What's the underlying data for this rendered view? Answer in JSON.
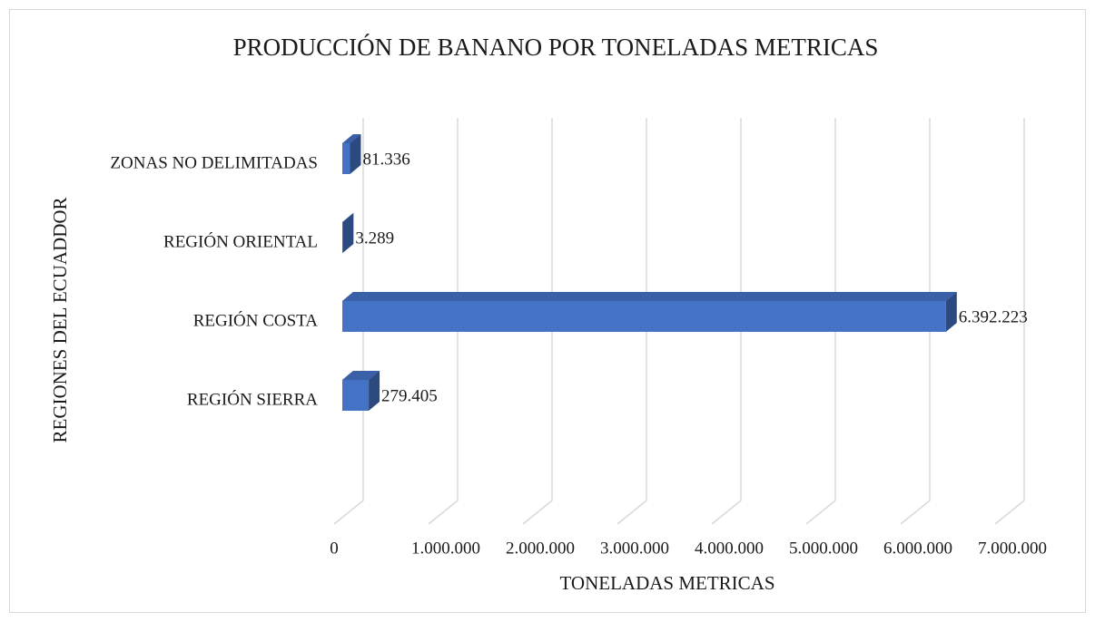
{
  "chart_data": {
    "type": "bar3d-horizontal",
    "title": "PRODUCCIÓN  DE BANANO POR TONELADAS METRICAS",
    "x_label": "TONELADAS METRICAS",
    "y_label": "REGIONES DEL ECUADDOR",
    "categories": [
      "REGIÓN SIERRA",
      "REGIÓN COSTA",
      "REGIÓN ORIENTAL",
      "ZONAS NO DELIMITADAS"
    ],
    "values": [
      279405,
      6392223,
      3289,
      81336
    ],
    "value_labels": [
      "279.405",
      "6.392.223",
      "3.289",
      "81.336"
    ],
    "color": "#4472c4",
    "xlim": [
      0,
      7000000
    ],
    "xticks": [
      0,
      {
        "value": 1000000,
        "label": "1.000.000"
      },
      {
        "value": 2000000,
        "label": "2.000.000"
      },
      {
        "value": 3000000,
        "label": "3.000.000"
      },
      {
        "value": 4000000,
        "label": "4.000.000"
      },
      {
        "value": 5000000,
        "label": "5.000.000"
      },
      {
        "value": 6000000,
        "label": "6.000.000"
      },
      {
        "value": 7000000,
        "label": "7.000.000"
      }
    ],
    "grid": true
  }
}
